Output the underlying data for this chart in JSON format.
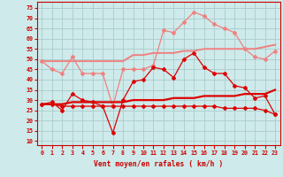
{
  "x": [
    0,
    1,
    2,
    3,
    4,
    5,
    6,
    7,
    8,
    9,
    10,
    11,
    12,
    13,
    14,
    15,
    16,
    17,
    18,
    19,
    20,
    21,
    22,
    23
  ],
  "line_rafales": [
    49,
    45,
    43,
    51,
    43,
    43,
    43,
    27,
    45,
    45,
    45,
    47,
    64,
    63,
    68,
    73,
    71,
    67,
    65,
    63,
    55,
    51,
    50,
    54
  ],
  "line_vent": [
    28,
    29,
    25,
    33,
    30,
    29,
    27,
    14,
    30,
    39,
    40,
    46,
    45,
    41,
    50,
    53,
    46,
    43,
    43,
    37,
    36,
    31,
    32,
    23
  ],
  "line_moy_haut": [
    49,
    49,
    49,
    49,
    49,
    49,
    49,
    49,
    49,
    52,
    52,
    53,
    53,
    53,
    54,
    54,
    55,
    55,
    55,
    55,
    55,
    55,
    56,
    57
  ],
  "line_moy_bas": [
    28,
    28,
    28,
    29,
    29,
    29,
    29,
    29,
    29,
    30,
    30,
    30,
    30,
    31,
    31,
    31,
    32,
    32,
    32,
    32,
    33,
    33,
    33,
    35
  ],
  "line_trend_dn": [
    28,
    28,
    27,
    27,
    27,
    27,
    27,
    27,
    27,
    27,
    27,
    27,
    27,
    27,
    27,
    27,
    27,
    27,
    26,
    26,
    26,
    26,
    25,
    23
  ],
  "bg_color": "#ceeaea",
  "grid_color": "#aacccc",
  "color_light": "#f08080",
  "color_dark": "#dd0000",
  "xlabel": "Vent moyen/en rafales ( km/h )",
  "yticks": [
    10,
    15,
    20,
    25,
    30,
    35,
    40,
    45,
    50,
    55,
    60,
    65,
    70,
    75
  ],
  "ylim": [
    8,
    78
  ],
  "xlim": [
    -0.5,
    23.5
  ]
}
